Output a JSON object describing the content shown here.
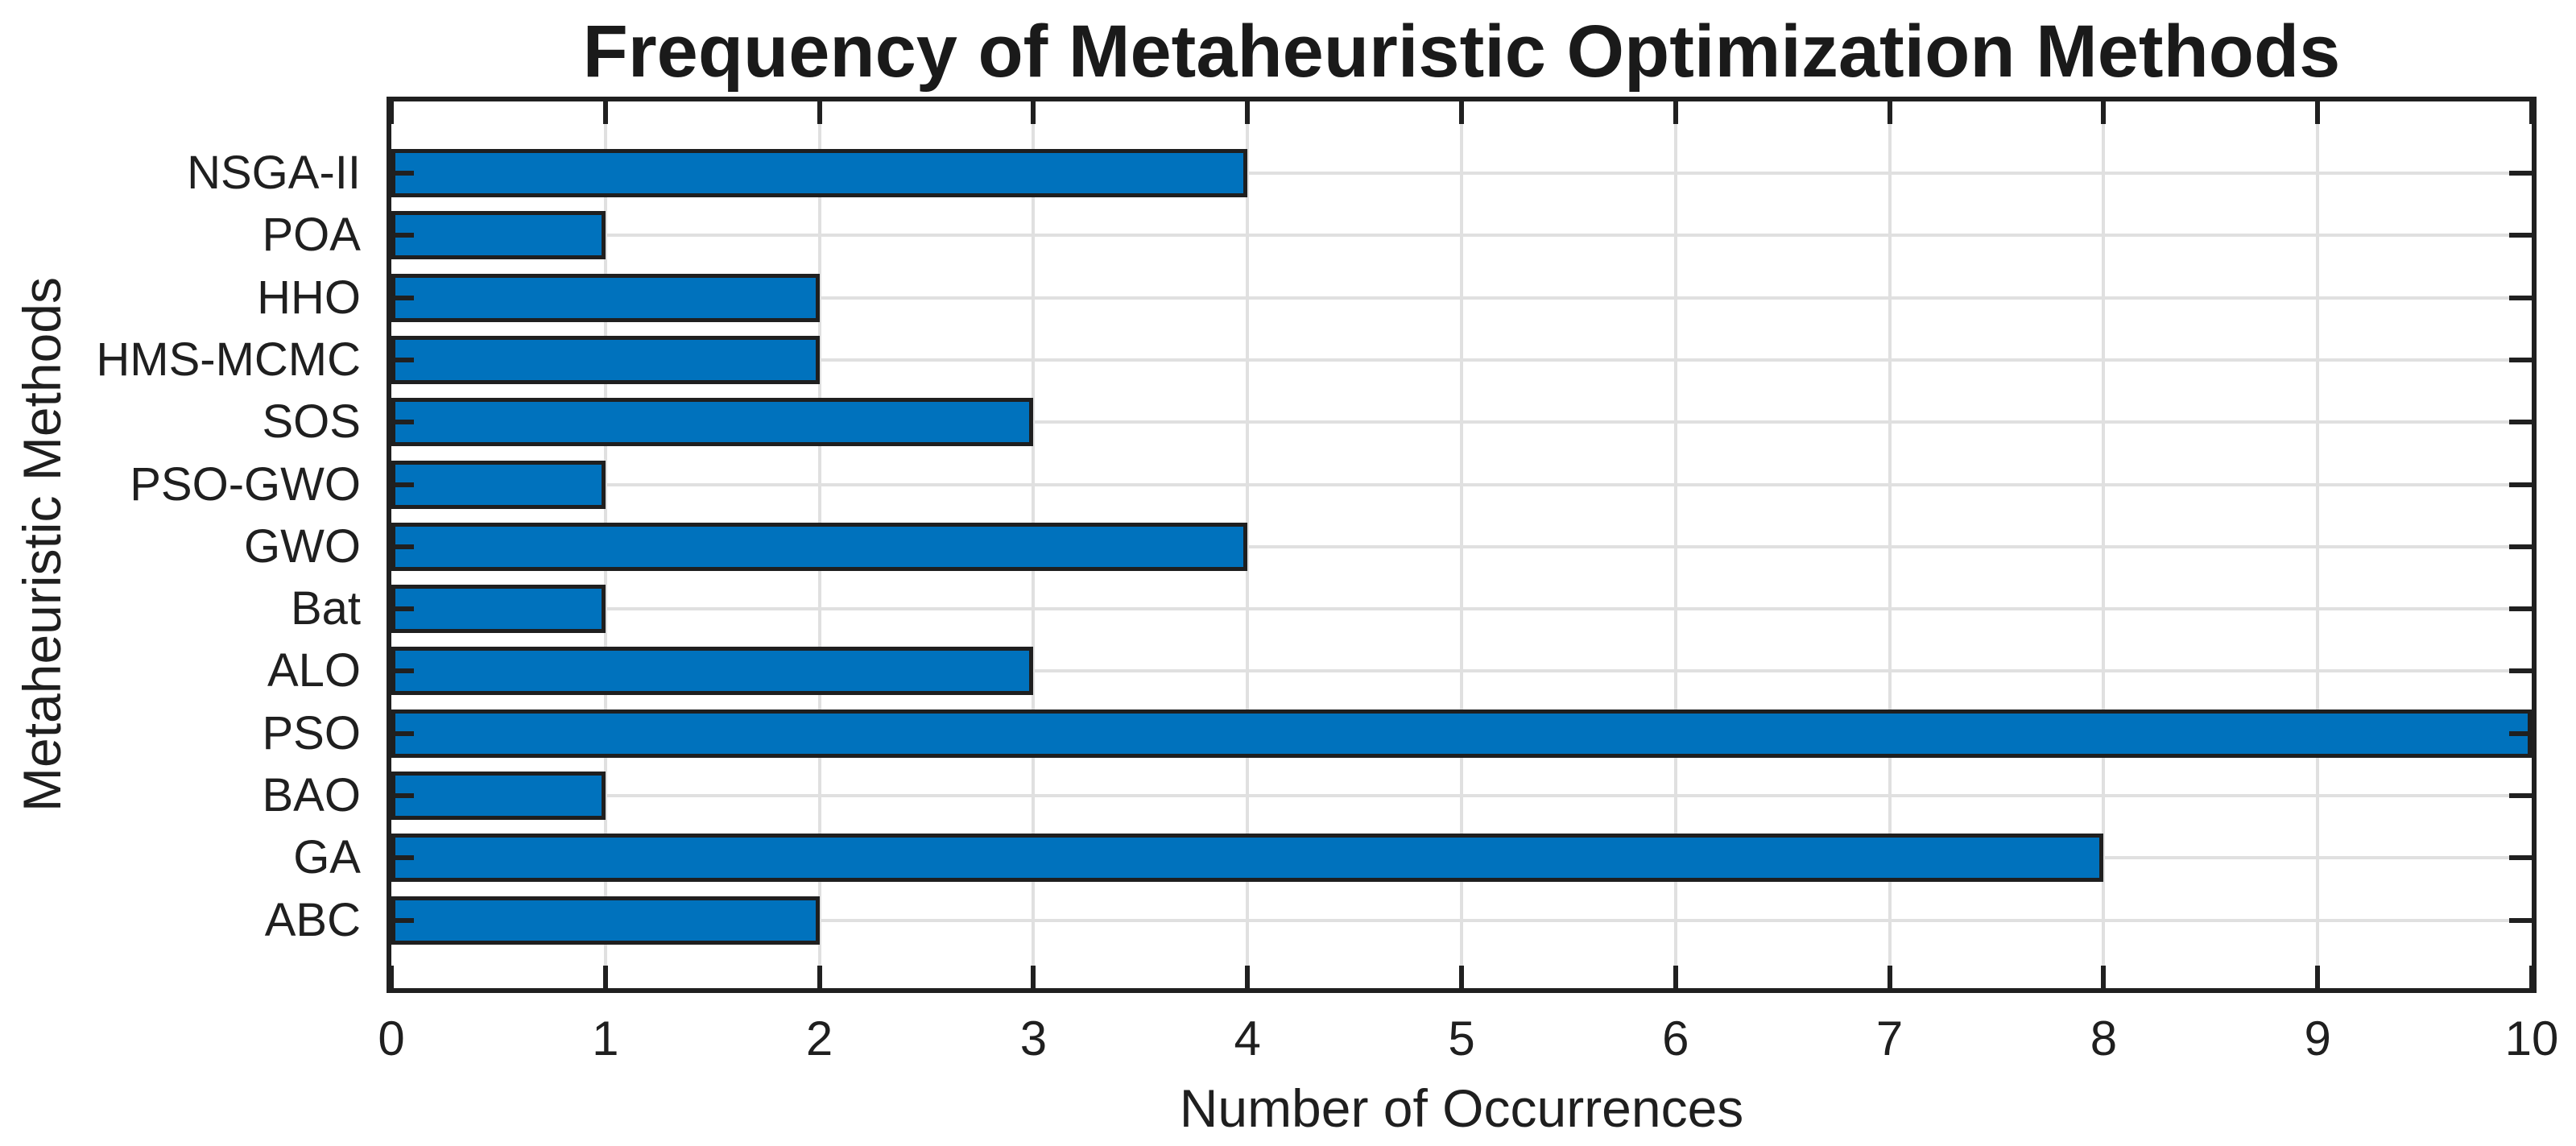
{
  "figure": {
    "title": "Frequency of Metaheuristic Optimization Methods",
    "xlabel": "Number of Occurrences",
    "ylabel": "Metaheuristic Methods"
  },
  "chart_data": {
    "type": "bar",
    "orientation": "horizontal",
    "title": "Frequency of Metaheuristic Optimization Methods",
    "xlabel": "Number of Occurrences",
    "ylabel": "Metaheuristic Methods",
    "categories_top_to_bottom": [
      "NSGA-II",
      "POA",
      "HHO",
      "HMS-MCMC",
      "SOS",
      "PSO-GWO",
      "GWO",
      "Bat",
      "ALO",
      "PSO",
      "BAO",
      "GA",
      "ABC"
    ],
    "values": [
      4,
      1,
      2,
      2,
      3,
      1,
      4,
      1,
      3,
      10,
      1,
      8,
      2
    ],
    "x_ticks": [
      0,
      1,
      2,
      3,
      4,
      5,
      6,
      7,
      8,
      9,
      10
    ],
    "xlim": [
      0,
      10
    ],
    "grid": true,
    "legend": false,
    "bar_width_fraction": 0.78,
    "colors": {
      "bar_fill": "#0072BD",
      "bar_edge": "#1f1f1f",
      "axis_box": "#202020",
      "grid": "#e0e0e0",
      "text": "#1f1f1f",
      "background": "#ffffff"
    }
  }
}
